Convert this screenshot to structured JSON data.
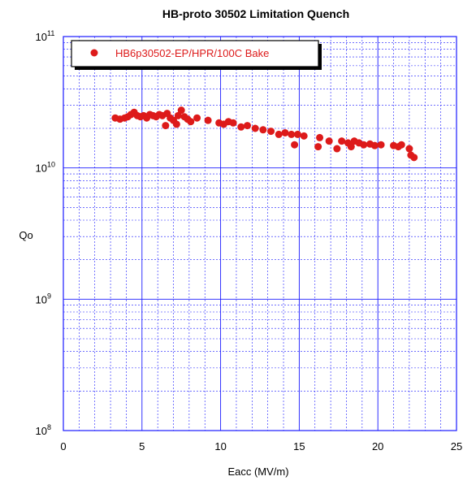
{
  "chart_data": {
    "type": "scatter",
    "title": "HB-proto 30502 Limitation Quench",
    "xlabel": "Eacc (MV/m)",
    "ylabel": "Qo",
    "x_ticks": [
      "0",
      "5",
      "10",
      "15",
      "20",
      "25"
    ],
    "y_ticks": [
      {
        "base": "10",
        "exp": "8"
      },
      {
        "base": "10",
        "exp": "9"
      },
      {
        "base": "10",
        "exp": "10"
      },
      {
        "base": "10",
        "exp": "11"
      }
    ],
    "xlim": [
      0,
      25
    ],
    "ylim": [
      100000000.0,
      100000000000.0
    ],
    "y_scale": "log",
    "grid": true,
    "legend_position": "top-left",
    "colors": {
      "series": "#dd1a1a",
      "grid": "#1a1aff",
      "frame": "#1a1aff"
    },
    "series": [
      {
        "name": "HB6p30502-EP/HPR/100C Bake",
        "x": [
          3.3,
          3.6,
          3.9,
          4.1,
          4.3,
          4.5,
          4.7,
          4.9,
          5.1,
          5.3,
          5.5,
          5.7,
          5.9,
          6.1,
          6.3,
          6.5,
          6.6,
          6.8,
          7.0,
          7.2,
          7.3,
          7.5,
          7.7,
          7.9,
          8.1,
          8.5,
          9.2,
          9.9,
          10.2,
          10.5,
          10.8,
          11.3,
          11.7,
          12.2,
          12.7,
          13.2,
          13.7,
          14.1,
          14.5,
          14.7,
          14.9,
          15.3,
          16.2,
          16.3,
          16.9,
          17.4,
          17.7,
          18.1,
          18.3,
          18.5,
          18.8,
          19.1,
          19.5,
          19.8,
          20.2,
          21.0,
          21.3,
          21.5,
          22.0,
          22.1,
          22.3
        ],
        "y": [
          24000000000.0,
          23500000000.0,
          24000000000.0,
          24500000000.0,
          25500000000.0,
          26500000000.0,
          25000000000.0,
          24500000000.0,
          25000000000.0,
          24000000000.0,
          25500000000.0,
          25000000000.0,
          24500000000.0,
          25500000000.0,
          25000000000.0,
          21000000000.0,
          26000000000.0,
          24000000000.0,
          23000000000.0,
          21500000000.0,
          25000000000.0,
          27500000000.0,
          24500000000.0,
          23500000000.0,
          22500000000.0,
          24000000000.0,
          23000000000.0,
          22000000000.0,
          21500000000.0,
          22500000000.0,
          22000000000.0,
          20500000000.0,
          21000000000.0,
          20000000000.0,
          19500000000.0,
          19000000000.0,
          18000000000.0,
          18500000000.0,
          18000000000.0,
          15000000000.0,
          18000000000.0,
          17500000000.0,
          14500000000.0,
          17000000000.0,
          16000000000.0,
          14000000000.0,
          16000000000.0,
          15500000000.0,
          14500000000.0,
          16000000000.0,
          15500000000.0,
          15000000000.0,
          15200000000.0,
          14800000000.0,
          15000000000.0,
          14800000000.0,
          14500000000.0,
          15000000000.0,
          14000000000.0,
          12500000000.0,
          12000000000.0
        ]
      }
    ]
  }
}
